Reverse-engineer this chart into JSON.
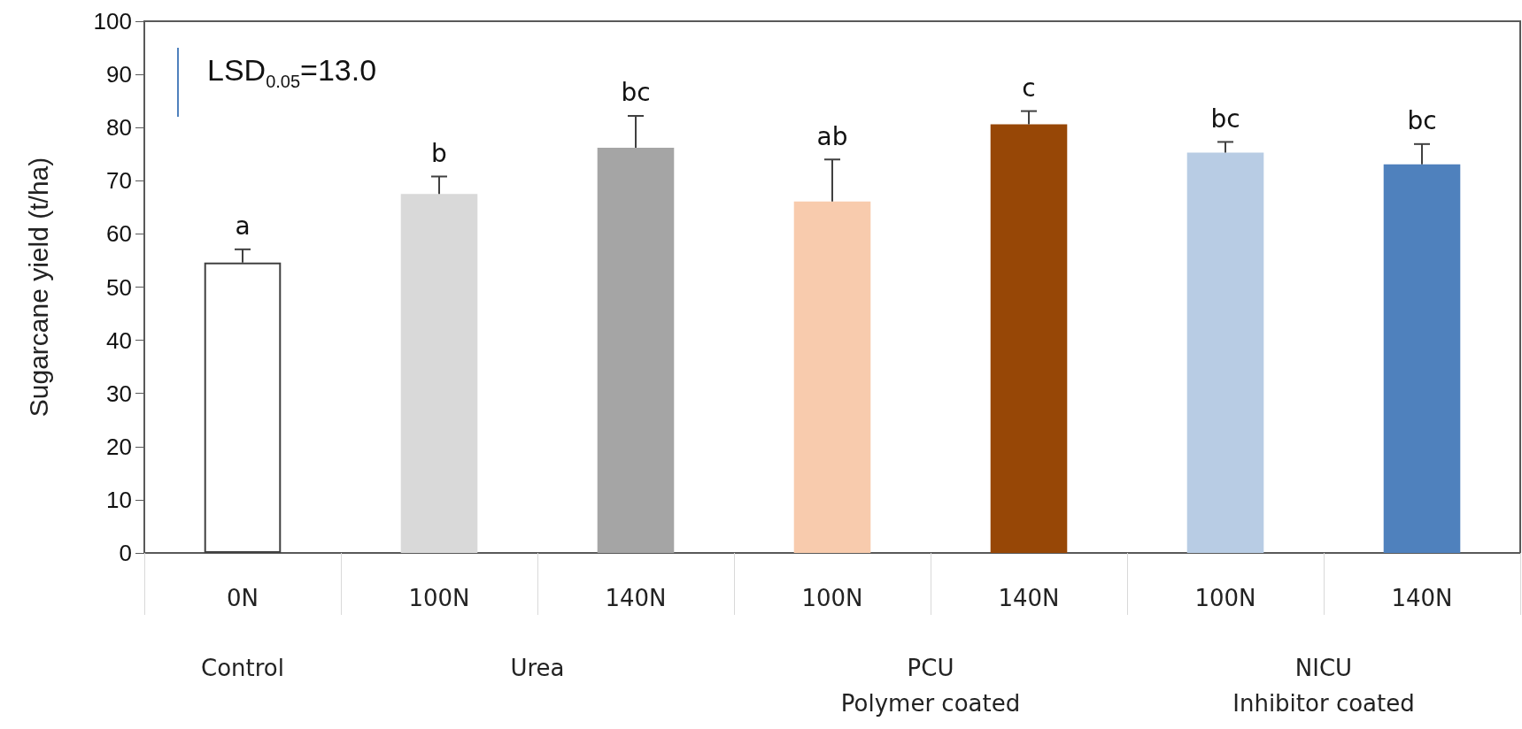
{
  "chart_data": {
    "type": "bar",
    "ylabel": "Sugarcane yield (t/ha)",
    "categories": [
      "0N",
      "100N",
      "140N",
      "100N",
      "140N",
      "100N",
      "140N"
    ],
    "values": [
      54.6,
      67.5,
      76.2,
      66.1,
      80.6,
      75.3,
      73.1
    ],
    "errors": [
      2.5,
      3.3,
      6.0,
      7.9,
      2.5,
      2.0,
      3.8
    ],
    "colors": [
      "#ffffff",
      "#d9d9d9",
      "#a5a5a5",
      "#f8cbad",
      "#974706",
      "#b8cce4",
      "#4f81bd"
    ],
    "value_labels": [
      "a",
      "b",
      "bc",
      "ab",
      "c",
      "bc",
      "bc"
    ],
    "ylim": [
      0,
      100
    ],
    "yticks": [
      0,
      10,
      20,
      30,
      40,
      50,
      60,
      70,
      80,
      90,
      100
    ],
    "grid": false,
    "annotations": [
      "LSD$_{0.05}$=13.0",
      "Control",
      "Urea",
      "PCU\nPolymer coated",
      "NICU\nInhibitor coated"
    ]
  }
}
